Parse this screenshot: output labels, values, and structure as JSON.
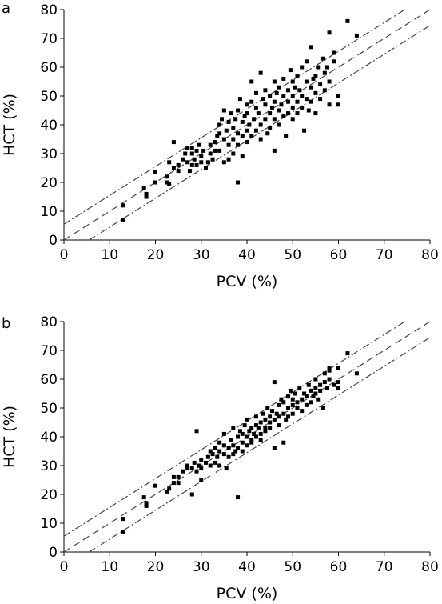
{
  "chart_data": [
    {
      "panel": "a",
      "type": "scatter",
      "xlabel": "PCV (%)",
      "ylabel": "HCT (%)",
      "xlim": [
        0,
        80
      ],
      "ylim": [
        0,
        80
      ],
      "xticks": [
        0,
        10,
        20,
        30,
        40,
        50,
        60,
        70,
        80
      ],
      "yticks": [
        0,
        10,
        20,
        30,
        40,
        50,
        60,
        70,
        80
      ],
      "reference_lines": [
        {
          "style": "dash-dot",
          "intercept": 5.5,
          "slope": 1
        },
        {
          "style": "dash",
          "intercept": 0,
          "slope": 1
        },
        {
          "style": "dash-dot",
          "intercept": -5.5,
          "slope": 1
        }
      ],
      "points": [
        [
          13,
          12
        ],
        [
          13,
          7
        ],
        [
          17.5,
          18
        ],
        [
          18,
          16
        ],
        [
          18,
          15
        ],
        [
          20,
          20
        ],
        [
          20,
          23.5
        ],
        [
          22.5,
          20
        ],
        [
          22.5,
          22
        ],
        [
          23,
          27
        ],
        [
          23,
          19.5
        ],
        [
          24,
          25
        ],
        [
          24,
          34
        ],
        [
          25,
          24
        ],
        [
          25,
          26
        ],
        [
          26,
          28
        ],
        [
          26.5,
          30
        ],
        [
          27,
          32
        ],
        [
          27,
          27
        ],
        [
          27.5,
          24
        ],
        [
          28,
          30
        ],
        [
          28,
          32
        ],
        [
          28,
          26
        ],
        [
          28.5,
          28
        ],
        [
          29,
          31
        ],
        [
          29,
          26
        ],
        [
          29.5,
          33
        ],
        [
          30,
          29
        ],
        [
          30,
          27
        ],
        [
          30.5,
          31
        ],
        [
          31,
          25
        ],
        [
          31.5,
          27
        ],
        [
          32,
          33
        ],
        [
          32,
          30
        ],
        [
          32.5,
          28
        ],
        [
          33,
          31
        ],
        [
          33,
          34
        ],
        [
          33.5,
          36
        ],
        [
          34,
          37
        ],
        [
          34,
          31
        ],
        [
          34,
          40
        ],
        [
          34.5,
          42
        ],
        [
          35,
          35
        ],
        [
          35,
          27
        ],
        [
          35,
          45
        ],
        [
          35.5,
          38
        ],
        [
          36,
          28
        ],
        [
          36,
          41
        ],
        [
          36,
          33
        ],
        [
          36.5,
          44
        ],
        [
          37,
          39
        ],
        [
          37,
          35
        ],
        [
          37,
          30
        ],
        [
          37.5,
          42
        ],
        [
          38,
          20
        ],
        [
          38,
          37
        ],
        [
          38,
          45
        ],
        [
          38,
          33
        ],
        [
          38.5,
          49
        ],
        [
          39,
          41
        ],
        [
          39,
          36
        ],
        [
          39,
          29
        ],
        [
          39.5,
          43
        ],
        [
          40,
          47
        ],
        [
          40,
          38
        ],
        [
          40,
          34
        ],
        [
          40,
          44
        ],
        [
          40.5,
          40
        ],
        [
          41,
          48
        ],
        [
          41,
          36
        ],
        [
          41,
          55
        ],
        [
          41.5,
          42
        ],
        [
          42,
          46
        ],
        [
          42,
          38
        ],
        [
          42,
          51
        ],
        [
          42.5,
          44
        ],
        [
          43,
          58
        ],
        [
          43,
          40
        ],
        [
          43,
          35
        ],
        [
          43.5,
          49
        ],
        [
          44,
          47
        ],
        [
          44,
          42
        ],
        [
          44,
          52
        ],
        [
          44.5,
          37
        ],
        [
          45,
          44
        ],
        [
          45,
          50
        ],
        [
          45,
          39
        ],
        [
          45.5,
          46
        ],
        [
          46,
          31
        ],
        [
          46,
          55
        ],
        [
          46,
          48
        ],
        [
          46,
          42
        ],
        [
          46.5,
          51
        ],
        [
          47,
          45
        ],
        [
          47,
          53
        ],
        [
          47,
          40
        ],
        [
          47.5,
          47
        ],
        [
          48,
          56
        ],
        [
          48,
          43
        ],
        [
          48,
          50
        ],
        [
          48.5,
          36
        ],
        [
          49,
          52
        ],
        [
          49,
          48
        ],
        [
          49,
          44
        ],
        [
          49.5,
          59
        ],
        [
          50,
          55
        ],
        [
          50,
          46
        ],
        [
          50,
          50
        ],
        [
          50,
          42
        ],
        [
          50.5,
          53
        ],
        [
          51,
          48
        ],
        [
          51,
          57
        ],
        [
          51,
          44
        ],
        [
          51.5,
          52
        ],
        [
          52,
          46
        ],
        [
          52,
          60
        ],
        [
          52,
          50
        ],
        [
          52.5,
          38
        ],
        [
          53,
          55
        ],
        [
          53,
          49
        ],
        [
          53,
          62
        ],
        [
          53.5,
          45
        ],
        [
          54,
          53
        ],
        [
          54,
          67
        ],
        [
          54,
          48
        ],
        [
          54.5,
          56
        ],
        [
          55,
          51
        ],
        [
          55,
          57
        ],
        [
          55,
          44
        ],
        [
          55.5,
          60
        ],
        [
          56,
          54
        ],
        [
          56,
          49
        ],
        [
          56.5,
          63
        ],
        [
          57,
          58
        ],
        [
          57,
          52
        ],
        [
          57.5,
          60
        ],
        [
          58,
          72
        ],
        [
          58,
          55
        ],
        [
          58,
          47
        ],
        [
          59,
          62
        ],
        [
          59,
          65
        ],
        [
          60,
          50
        ],
        [
          60,
          47
        ],
        [
          62,
          76
        ],
        [
          64,
          71
        ]
      ]
    },
    {
      "panel": "b",
      "type": "scatter",
      "xlabel": "PCV (%)",
      "ylabel": "HCT (%)",
      "xlim": [
        0,
        80
      ],
      "ylim": [
        0,
        80
      ],
      "xticks": [
        0,
        10,
        20,
        30,
        40,
        50,
        60,
        70,
        80
      ],
      "yticks": [
        0,
        10,
        20,
        30,
        40,
        50,
        60,
        70,
        80
      ],
      "reference_lines": [
        {
          "style": "dash-dot",
          "intercept": 5.5,
          "slope": 1
        },
        {
          "style": "dash",
          "intercept": 0,
          "slope": 1
        },
        {
          "style": "dash-dot",
          "intercept": -5.5,
          "slope": 1
        }
      ],
      "points": [
        [
          13,
          11.5
        ],
        [
          13,
          7
        ],
        [
          17.5,
          19
        ],
        [
          18,
          17
        ],
        [
          18,
          16
        ],
        [
          20,
          23
        ],
        [
          22.5,
          21
        ],
        [
          23,
          22
        ],
        [
          24,
          26
        ],
        [
          24,
          24
        ],
        [
          25,
          26
        ],
        [
          25,
          24
        ],
        [
          26,
          28
        ],
        [
          27,
          30
        ],
        [
          27,
          29
        ],
        [
          28,
          20
        ],
        [
          28,
          29
        ],
        [
          28.5,
          31
        ],
        [
          29,
          42
        ],
        [
          29,
          28
        ],
        [
          29.5,
          30
        ],
        [
          30,
          32
        ],
        [
          30,
          29
        ],
        [
          30,
          25
        ],
        [
          31,
          31
        ],
        [
          31.5,
          33
        ],
        [
          32,
          35
        ],
        [
          32,
          30
        ],
        [
          32.5,
          34
        ],
        [
          33,
          31
        ],
        [
          33,
          36
        ],
        [
          33.5,
          33
        ],
        [
          34,
          35
        ],
        [
          34,
          38
        ],
        [
          34,
          30
        ],
        [
          35,
          34
        ],
        [
          35,
          37
        ],
        [
          35,
          41
        ],
        [
          35.5,
          29
        ],
        [
          36,
          36
        ],
        [
          36,
          33
        ],
        [
          36.5,
          39
        ],
        [
          37,
          37
        ],
        [
          37,
          34
        ],
        [
          37,
          43
        ],
        [
          37.5,
          35
        ],
        [
          38,
          19
        ],
        [
          38,
          40
        ],
        [
          38,
          36
        ],
        [
          38.5,
          42
        ],
        [
          39,
          38
        ],
        [
          39,
          41
        ],
        [
          39,
          35
        ],
        [
          39.5,
          44
        ],
        [
          40,
          40
        ],
        [
          40,
          37
        ],
        [
          40,
          46
        ],
        [
          40.5,
          42
        ],
        [
          41,
          39
        ],
        [
          41,
          43
        ],
        [
          41,
          38
        ],
        [
          41.5,
          41
        ],
        [
          42,
          44
        ],
        [
          42,
          40
        ],
        [
          42,
          47
        ],
        [
          42.5,
          43
        ],
        [
          43,
          41
        ],
        [
          43,
          45
        ],
        [
          43,
          39
        ],
        [
          43.5,
          48
        ],
        [
          44,
          43
        ],
        [
          44,
          46
        ],
        [
          44,
          42
        ],
        [
          44.5,
          50
        ],
        [
          45,
          45
        ],
        [
          45,
          47
        ],
        [
          45,
          43
        ],
        [
          45.5,
          49
        ],
        [
          46,
          46
        ],
        [
          46,
          36
        ],
        [
          46,
          59
        ],
        [
          46.5,
          48
        ],
        [
          47,
          47
        ],
        [
          47,
          51
        ],
        [
          47,
          44
        ],
        [
          47.5,
          53
        ],
        [
          48,
          48
        ],
        [
          48,
          38
        ],
        [
          48,
          52
        ],
        [
          48.5,
          46
        ],
        [
          49,
          50
        ],
        [
          49,
          54
        ],
        [
          49,
          47
        ],
        [
          49.5,
          56
        ],
        [
          50,
          51
        ],
        [
          50,
          48
        ],
        [
          50,
          53
        ],
        [
          50.5,
          55
        ],
        [
          51,
          50
        ],
        [
          51,
          52
        ],
        [
          51.5,
          57
        ],
        [
          52,
          53
        ],
        [
          52,
          49
        ],
        [
          52.5,
          55
        ],
        [
          53,
          54
        ],
        [
          53,
          51
        ],
        [
          53.5,
          58
        ],
        [
          54,
          56
        ],
        [
          54,
          52
        ],
        [
          54.5,
          54
        ],
        [
          55,
          57
        ],
        [
          55,
          55
        ],
        [
          55,
          60
        ],
        [
          55.5,
          53
        ],
        [
          56,
          58
        ],
        [
          56,
          56
        ],
        [
          56.5,
          50
        ],
        [
          57,
          59
        ],
        [
          57,
          62
        ],
        [
          57.5,
          57
        ],
        [
          58,
          60
        ],
        [
          58,
          64
        ],
        [
          58,
          63
        ],
        [
          59,
          58
        ],
        [
          60,
          64
        ],
        [
          60,
          59
        ],
        [
          60,
          57
        ],
        [
          62,
          69
        ],
        [
          64,
          62
        ]
      ]
    }
  ]
}
